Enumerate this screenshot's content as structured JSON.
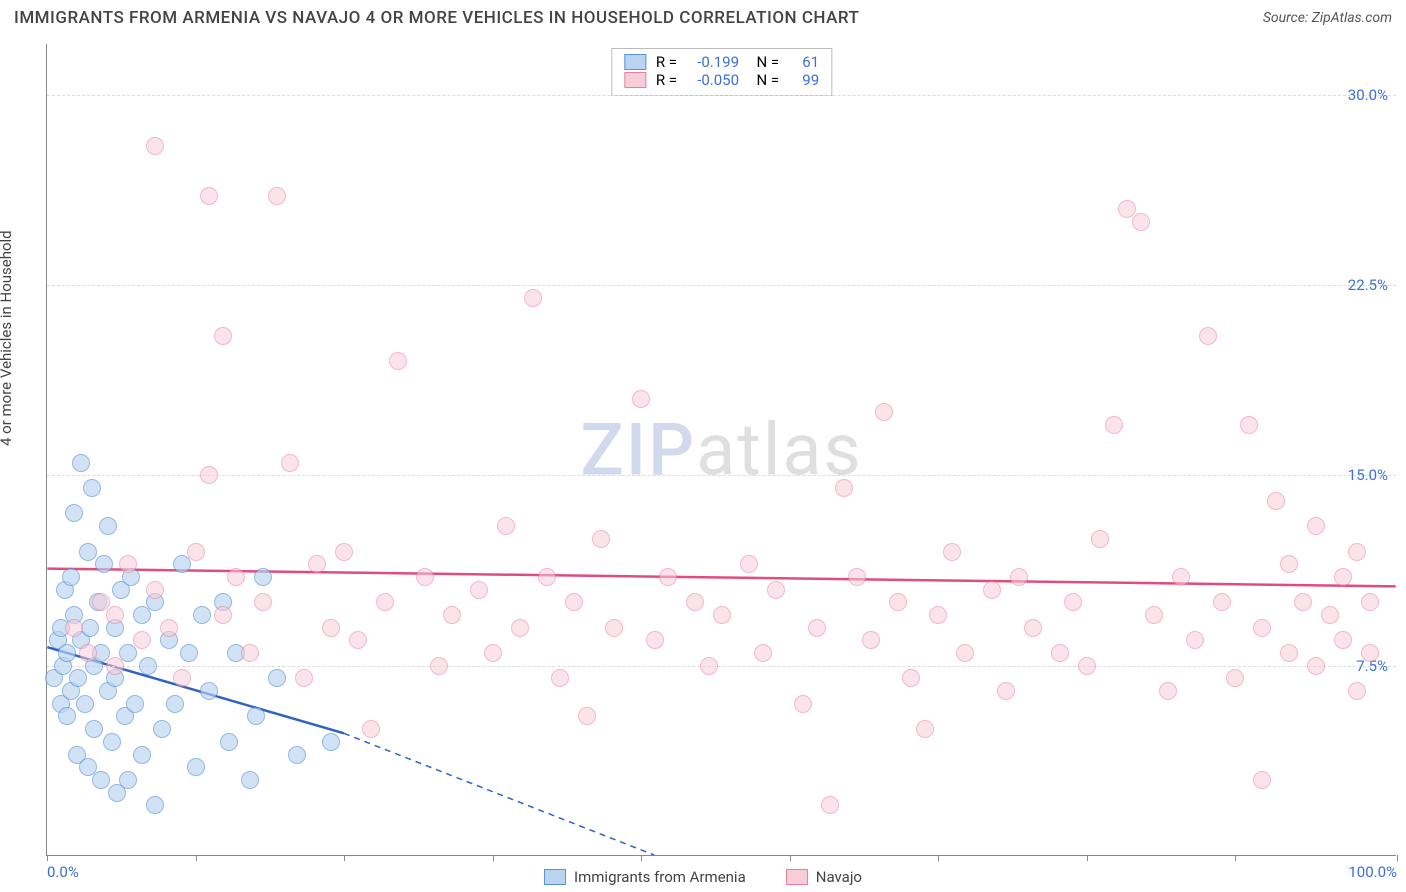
{
  "title": "IMMIGRANTS FROM ARMENIA VS NAVAJO 4 OR MORE VEHICLES IN HOUSEHOLD CORRELATION CHART",
  "source": "Source: ZipAtlas.com",
  "ylabel": "4 or more Vehicles in Household",
  "watermark": {
    "part1": "ZIP",
    "part2": "atlas"
  },
  "chart": {
    "type": "scatter",
    "background_color": "#ffffff",
    "grid_color": "#dddddd",
    "axis_color": "#888888",
    "tick_label_color": "#3b6fd6",
    "xlim": [
      0,
      100
    ],
    "ylim": [
      0,
      32
    ],
    "yticks": [
      7.5,
      15.0,
      22.5,
      30.0
    ],
    "ytick_labels": [
      "7.5%",
      "15.0%",
      "22.5%",
      "30.0%"
    ],
    "xticks": [
      0,
      11,
      22,
      33,
      44,
      55,
      66,
      77,
      88,
      100
    ],
    "xtick_labels": {
      "0": "0.0%",
      "100": "100.0%"
    },
    "marker_radius": 9,
    "marker_stroke_width": 1.5,
    "series": [
      {
        "name": "Immigrants from Armenia",
        "fill": "#b9d3f0",
        "stroke": "#5a93d6",
        "fill_opacity": 0.65,
        "R": "-0.199",
        "N": "61",
        "regression": {
          "x1": 0,
          "y1": 8.2,
          "x2": 22,
          "y2": 4.8,
          "dash_to_x": 45,
          "dash_to_y": 0
        },
        "line_color": "#2f62c4",
        "points": [
          [
            0.5,
            7.0
          ],
          [
            0.8,
            8.5
          ],
          [
            1.0,
            6.0
          ],
          [
            1.0,
            9.0
          ],
          [
            1.2,
            7.5
          ],
          [
            1.3,
            10.5
          ],
          [
            1.5,
            5.5
          ],
          [
            1.5,
            8.0
          ],
          [
            1.8,
            11.0
          ],
          [
            1.8,
            6.5
          ],
          [
            2.0,
            13.5
          ],
          [
            2.0,
            9.5
          ],
          [
            2.2,
            4.0
          ],
          [
            2.3,
            7.0
          ],
          [
            2.5,
            15.5
          ],
          [
            2.5,
            8.5
          ],
          [
            2.8,
            6.0
          ],
          [
            3.0,
            12.0
          ],
          [
            3.0,
            3.5
          ],
          [
            3.2,
            9.0
          ],
          [
            3.3,
            14.5
          ],
          [
            3.5,
            7.5
          ],
          [
            3.5,
            5.0
          ],
          [
            3.8,
            10.0
          ],
          [
            4.0,
            8.0
          ],
          [
            4.0,
            3.0
          ],
          [
            4.2,
            11.5
          ],
          [
            4.5,
            6.5
          ],
          [
            4.5,
            13.0
          ],
          [
            4.8,
            4.5
          ],
          [
            5.0,
            9.0
          ],
          [
            5.0,
            7.0
          ],
          [
            5.2,
            2.5
          ],
          [
            5.5,
            10.5
          ],
          [
            5.8,
            5.5
          ],
          [
            6.0,
            8.0
          ],
          [
            6.0,
            3.0
          ],
          [
            6.2,
            11.0
          ],
          [
            6.5,
            6.0
          ],
          [
            7.0,
            9.5
          ],
          [
            7.0,
            4.0
          ],
          [
            7.5,
            7.5
          ],
          [
            8.0,
            10.0
          ],
          [
            8.0,
            2.0
          ],
          [
            8.5,
            5.0
          ],
          [
            9.0,
            8.5
          ],
          [
            9.5,
            6.0
          ],
          [
            10.0,
            11.5
          ],
          [
            10.5,
            8.0
          ],
          [
            11.0,
            3.5
          ],
          [
            11.5,
            9.5
          ],
          [
            12.0,
            6.5
          ],
          [
            13.0,
            10.0
          ],
          [
            13.5,
            4.5
          ],
          [
            14.0,
            8.0
          ],
          [
            15.0,
            3.0
          ],
          [
            15.5,
            5.5
          ],
          [
            16.0,
            11.0
          ],
          [
            17.0,
            7.0
          ],
          [
            18.5,
            4.0
          ],
          [
            21.0,
            4.5
          ]
        ]
      },
      {
        "name": "Navajo",
        "fill": "#f7cdd8",
        "stroke": "#e87fa0",
        "fill_opacity": 0.55,
        "R": "-0.050",
        "N": "99",
        "regression": {
          "x1": 0,
          "y1": 11.3,
          "x2": 100,
          "y2": 10.6
        },
        "line_color": "#e14d7b",
        "points": [
          [
            2,
            9.0
          ],
          [
            3,
            8.0
          ],
          [
            4,
            10.0
          ],
          [
            5,
            7.5
          ],
          [
            5,
            9.5
          ],
          [
            6,
            11.5
          ],
          [
            7,
            8.5
          ],
          [
            8,
            10.5
          ],
          [
            8,
            28.0
          ],
          [
            9,
            9.0
          ],
          [
            10,
            7.0
          ],
          [
            11,
            12.0
          ],
          [
            12,
            26.0
          ],
          [
            12,
            15.0
          ],
          [
            13,
            20.5
          ],
          [
            13,
            9.5
          ],
          [
            14,
            11.0
          ],
          [
            15,
            8.0
          ],
          [
            16,
            10.0
          ],
          [
            17,
            26.0
          ],
          [
            18,
            15.5
          ],
          [
            19,
            7.0
          ],
          [
            20,
            11.5
          ],
          [
            21,
            9.0
          ],
          [
            22,
            12.0
          ],
          [
            23,
            8.5
          ],
          [
            24,
            5.0
          ],
          [
            25,
            10.0
          ],
          [
            26,
            19.5
          ],
          [
            28,
            11.0
          ],
          [
            29,
            7.5
          ],
          [
            30,
            9.5
          ],
          [
            32,
            10.5
          ],
          [
            33,
            8.0
          ],
          [
            34,
            13.0
          ],
          [
            35,
            9.0
          ],
          [
            36,
            22.0
          ],
          [
            37,
            11.0
          ],
          [
            38,
            7.0
          ],
          [
            39,
            10.0
          ],
          [
            40,
            5.5
          ],
          [
            41,
            12.5
          ],
          [
            42,
            9.0
          ],
          [
            44,
            18.0
          ],
          [
            45,
            8.5
          ],
          [
            46,
            11.0
          ],
          [
            48,
            10.0
          ],
          [
            49,
            7.5
          ],
          [
            50,
            9.5
          ],
          [
            52,
            11.5
          ],
          [
            53,
            8.0
          ],
          [
            54,
            10.5
          ],
          [
            56,
            6.0
          ],
          [
            57,
            9.0
          ],
          [
            58,
            2.0
          ],
          [
            59,
            14.5
          ],
          [
            60,
            11.0
          ],
          [
            61,
            8.5
          ],
          [
            62,
            17.5
          ],
          [
            63,
            10.0
          ],
          [
            64,
            7.0
          ],
          [
            65,
            5.0
          ],
          [
            66,
            9.5
          ],
          [
            67,
            12.0
          ],
          [
            68,
            8.0
          ],
          [
            70,
            10.5
          ],
          [
            71,
            6.5
          ],
          [
            72,
            11.0
          ],
          [
            73,
            9.0
          ],
          [
            75,
            8.0
          ],
          [
            76,
            10.0
          ],
          [
            77,
            7.5
          ],
          [
            78,
            12.5
          ],
          [
            79,
            17.0
          ],
          [
            80,
            25.5
          ],
          [
            81,
            25.0
          ],
          [
            82,
            9.5
          ],
          [
            83,
            6.5
          ],
          [
            84,
            11.0
          ],
          [
            85,
            8.5
          ],
          [
            86,
            20.5
          ],
          [
            87,
            10.0
          ],
          [
            88,
            7.0
          ],
          [
            89,
            17.0
          ],
          [
            90,
            9.0
          ],
          [
            90,
            3.0
          ],
          [
            91,
            14.0
          ],
          [
            92,
            11.5
          ],
          [
            92,
            8.0
          ],
          [
            93,
            10.0
          ],
          [
            94,
            13.0
          ],
          [
            94,
            7.5
          ],
          [
            95,
            9.5
          ],
          [
            96,
            11.0
          ],
          [
            96,
            8.5
          ],
          [
            97,
            12.0
          ],
          [
            97,
            6.5
          ],
          [
            98,
            10.0
          ],
          [
            98,
            8.0
          ]
        ]
      }
    ]
  },
  "legend": {
    "series1_label": "Immigrants from Armenia",
    "series2_label": "Navajo"
  }
}
